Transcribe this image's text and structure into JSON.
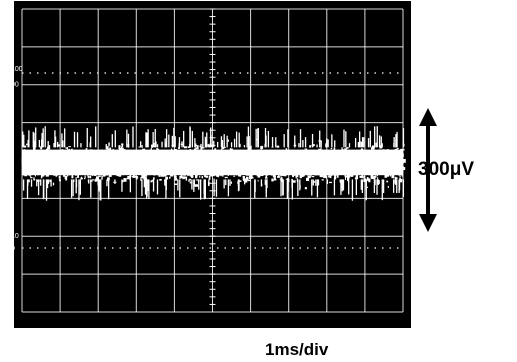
{
  "chart_data": {
    "type": "scatter",
    "description_text": {
      "amplitude_scale": "300μV",
      "time_scale": "1ms/div",
      "graticule_marks": [
        "100",
        "90",
        "10",
        "0"
      ]
    },
    "grid": true,
    "divisions": {
      "x": 10,
      "y": 8
    },
    "series": [
      {
        "trace": "noise",
        "color": "#ffffff",
        "band_center_div": 4.05,
        "band_half_width_div": 0.45,
        "burst_extent_div": 0.85
      }
    ]
  },
  "colors": {
    "screen": "#000000",
    "grid": "#ffffff",
    "trace": "#ffffff",
    "arrow": "#000000"
  }
}
